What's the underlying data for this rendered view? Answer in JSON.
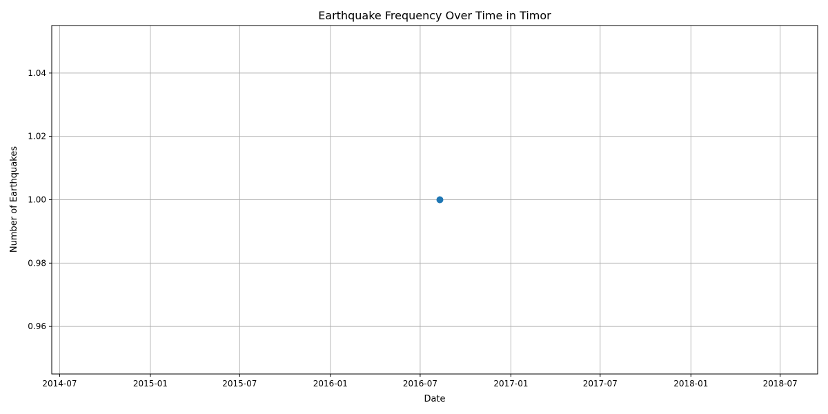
{
  "chart_data": {
    "type": "scatter",
    "title": "Earthquake Frequency Over Time in Timor",
    "xlabel": "Date",
    "ylabel": "Number of Earthquakes",
    "xlim": [
      "2014-06-15",
      "2018-09-15"
    ],
    "ylim": [
      0.945,
      1.055
    ],
    "x_ticks": [
      "2014-07",
      "2015-01",
      "2015-07",
      "2016-01",
      "2016-07",
      "2017-01",
      "2017-07",
      "2018-01",
      "2018-07"
    ],
    "y_ticks": [
      "0.96",
      "0.98",
      "1.00",
      "1.02",
      "1.04"
    ],
    "grid": true,
    "series": [
      {
        "color": "#1f77b4",
        "points": [
          {
            "x": "2016-08-10",
            "y": 1.0
          }
        ]
      }
    ]
  }
}
